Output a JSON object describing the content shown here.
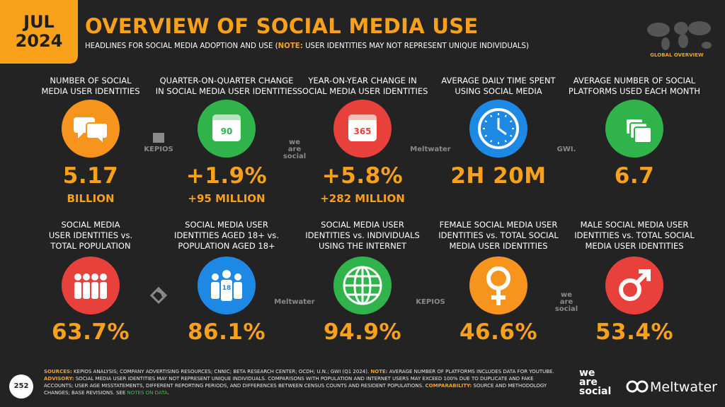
{
  "header": {
    "month": "JUL",
    "year": "2024",
    "title": "OVERVIEW OF SOCIAL MEDIA USE",
    "subtitle": "HEADLINES FOR SOCIAL MEDIA ADOPTION AND USE (",
    "subtitle_note": "NOTE:",
    "subtitle_rest": " USER IDENTITIES MAY NOT REPRESENT UNIQUE INDIVIDUALS)",
    "map_label": "GLOBAL OVERVIEW"
  },
  "top_stats": [
    {
      "label": [
        "NUMBER OF SOCIAL",
        "MEDIA USER IDENTITIES"
      ],
      "value": "5.17",
      "sub": "BILLION",
      "color": "#f7941d"
    },
    {
      "label": [
        "QUARTER-ON-QUARTER CHANGE",
        "IN SOCIAL MEDIA USER IDENTITIES"
      ],
      "value": "+1.9%",
      "sub": "+95 MILLION",
      "icon_text": "90",
      "color": "#2fb34a"
    },
    {
      "label": [
        "YEAR-ON-YEAR CHANGE IN",
        "SOCIAL MEDIA USER IDENTITIES"
      ],
      "value": "+5.8%",
      "sub": "+282 MILLION",
      "icon_text": "365",
      "color": "#e8403a"
    },
    {
      "label": [
        "AVERAGE DAILY TIME SPENT",
        "USING SOCIAL MEDIA"
      ],
      "value": "2H 20M",
      "color": "#1e88e5"
    },
    {
      "label": [
        "AVERAGE NUMBER OF SOCIAL",
        "PLATFORMS USED EACH MONTH"
      ],
      "value": "6.7",
      "color": "#2fb34a"
    }
  ],
  "bottom_stats": [
    {
      "label": [
        "SOCIAL MEDIA",
        "USER IDENTITIES vs.",
        "TOTAL POPULATION"
      ],
      "value": "63.7%",
      "color": "#e8403a"
    },
    {
      "label": [
        "SOCIAL MEDIA USER",
        "IDENTITIES AGED 18+ vs.",
        "POPULATION AGED 18+"
      ],
      "value": "86.1%",
      "icon_text": "18",
      "color": "#1e88e5"
    },
    {
      "label": [
        "SOCIAL MEDIA USER",
        "IDENTITIES vs. INDIVIDUALS",
        "USING THE INTERNET"
      ],
      "value": "94.9%",
      "color": "#2fb34a"
    },
    {
      "label": [
        "FEMALE SOCIAL MEDIA USER",
        "IDENTITIES vs. TOTAL SOCIAL",
        "MEDIA USER IDENTITIES"
      ],
      "value": "46.6%",
      "color": "#f7941d"
    },
    {
      "label": [
        "MALE SOCIAL MEDIA USER",
        "IDENTITIES vs. TOTAL SOCIAL",
        "MEDIA USER IDENTITIES"
      ],
      "value": "53.4%",
      "color": "#e8403a"
    }
  ],
  "top_brands": [
    [
      "KEPIOS"
    ],
    [
      "we",
      "are",
      "social"
    ],
    [
      "Meltwater"
    ],
    [
      "GWI."
    ]
  ],
  "bottom_brands": [
    [
      "Meltwater"
    ],
    [
      "KEPIOS"
    ],
    [
      "we",
      "are",
      "social"
    ]
  ],
  "footer": {
    "page": "252",
    "notes": [
      {
        "text": "SOURCES:",
        "style": "key"
      },
      {
        "text": " KEPIOS ANALYSIS; COMPANY ADVERTISING RESOURCES; CNNIC; BETA RESEARCH CENTER; OCDH; U.N.; GWI (Q1 2024). "
      },
      {
        "text": "NOTE:",
        "style": "key"
      },
      {
        "text": " AVERAGE NUMBER OF PLATFORMS INCLUDES DATA FOR YOUTUBE. "
      },
      {
        "text": "ADVISORY:",
        "style": "key"
      },
      {
        "text": " SOCIAL MEDIA USER IDENTITIES MAY NOT REPRESENT UNIQUE INDIVIDUALS. COMPARISONS WITH POPULATION AND INTERNET USERS MAY EXCEED 100% DUE TO DUPLICATE AND FAKE ACCOUNTS; USER AGE MISSTATEMENTS, DIFFERENT REPORTING PERIODS, AND DIFFERENCES BETWEEN CENSUS COUNTS AND RESIDENT POPULATIONS. "
      },
      {
        "text": "COMPARABILITY:",
        "style": "key"
      },
      {
        "text": " SOURCE AND METHODOLOGY CHANGES; BASE REVISIONS. SEE "
      },
      {
        "text": "NOTES ON DATA",
        "style": "link"
      },
      {
        "text": "."
      }
    ],
    "logo_lines": [
      "we",
      "are",
      "social"
    ],
    "logo_meltwater": "Meltwater"
  }
}
